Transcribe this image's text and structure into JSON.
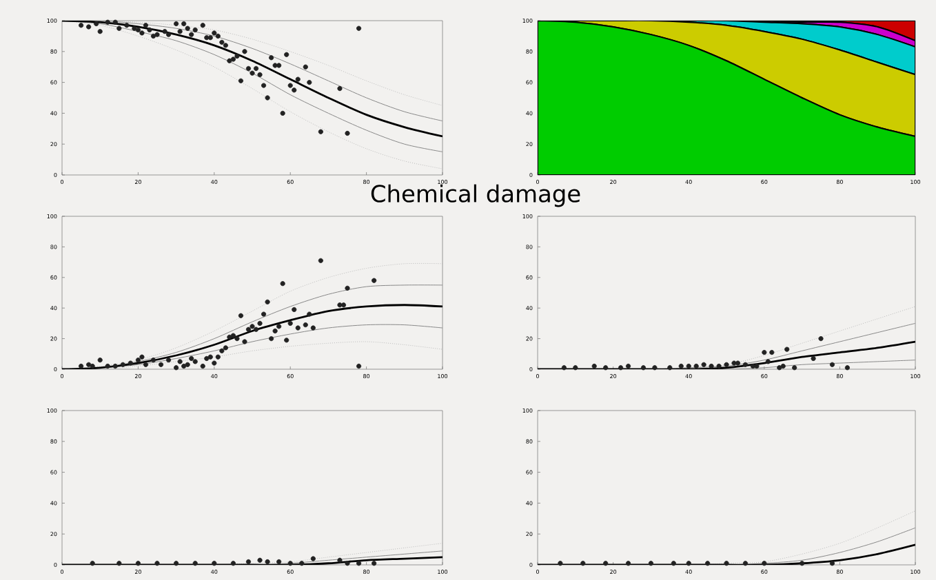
{
  "chart_data": [
    {
      "type": "scatter",
      "title": "Chemical damage",
      "xlim": [
        0,
        100
      ],
      "ylim": [
        0,
        100
      ],
      "xticks": [
        0,
        20,
        40,
        60,
        80,
        100
      ],
      "yticks": [
        0,
        20,
        40,
        60,
        80,
        100
      ],
      "grid": false,
      "series": [
        {
          "type": "scatter",
          "marker": "circle",
          "color": "#222222",
          "x": [
            5,
            7,
            9,
            10,
            12,
            14,
            15,
            17,
            19,
            20,
            21,
            22,
            23,
            24,
            25,
            27,
            28,
            30,
            31,
            32,
            33,
            34,
            35,
            37,
            38,
            39,
            40,
            41,
            42,
            43,
            44,
            45,
            46,
            47,
            48,
            49,
            50,
            51,
            52,
            53,
            54,
            55,
            56,
            57,
            58,
            59,
            60,
            61,
            62,
            64,
            65,
            68,
            73,
            75,
            78
          ],
          "values": [
            97,
            96,
            98,
            93,
            99,
            99,
            95,
            97,
            95,
            94,
            92,
            97,
            94,
            90,
            91,
            93,
            91,
            98,
            93,
            98,
            95,
            91,
            94,
            97,
            89,
            89,
            92,
            90,
            86,
            84,
            74,
            75,
            77,
            61,
            80,
            69,
            66,
            69,
            65,
            58,
            50,
            76,
            71,
            71,
            40,
            78,
            58,
            55,
            62,
            70,
            60,
            28,
            56,
            27,
            95
          ]
        },
        {
          "type": "line",
          "line_style": "dotted",
          "color": "#bbbbbb",
          "x": [
            0,
            10,
            20,
            30,
            40,
            50,
            60,
            70,
            80,
            90,
            100
          ],
          "values": [
            100,
            100,
            99,
            97,
            94,
            88,
            80,
            71,
            61,
            52,
            45
          ]
        },
        {
          "type": "line",
          "line_style": "dotted",
          "color": "#bbbbbb",
          "x": [
            0,
            10,
            20,
            30,
            40,
            50,
            60,
            70,
            80,
            90,
            100
          ],
          "values": [
            100,
            97,
            90,
            81,
            70,
            56,
            41,
            28,
            17,
            9,
            4
          ]
        },
        {
          "type": "line",
          "line_style": "solid",
          "color": "#888888",
          "x": [
            0,
            10,
            20,
            30,
            40,
            50,
            60,
            70,
            80,
            90,
            100
          ],
          "values": [
            100,
            100,
            98,
            95,
            90,
            82,
            72,
            61,
            50,
            41,
            35
          ]
        },
        {
          "type": "line",
          "line_style": "solid",
          "color": "#888888",
          "x": [
            0,
            10,
            20,
            30,
            40,
            50,
            60,
            70,
            80,
            90,
            100
          ],
          "values": [
            100,
            98,
            93,
            87,
            78,
            66,
            52,
            40,
            29,
            20,
            15
          ]
        },
        {
          "type": "line",
          "line_style": "solid",
          "color": "#000000",
          "x": [
            0,
            10,
            20,
            30,
            40,
            50,
            60,
            70,
            80,
            90,
            100
          ],
          "values": [
            100,
            99,
            96,
            91,
            84,
            74,
            62,
            50,
            39,
            31,
            25
          ]
        }
      ]
    },
    {
      "type": "area",
      "stacked": true,
      "xlim": [
        0,
        100
      ],
      "ylim": [
        0,
        100
      ],
      "xticks": [
        0,
        20,
        40,
        60,
        80,
        100
      ],
      "yticks": [
        0,
        20,
        40,
        60,
        80,
        100
      ],
      "grid": false,
      "x": [
        0,
        10,
        20,
        30,
        40,
        50,
        60,
        70,
        80,
        90,
        100
      ],
      "series": [
        {
          "color": "#00cc00",
          "values": [
            100,
            99,
            96,
            91,
            84,
            74,
            62,
            50,
            39,
            31,
            25
          ]
        },
        {
          "color": "#cccc00",
          "values": [
            0,
            1,
            4,
            9,
            15,
            23,
            31,
            38,
            42,
            42,
            40
          ]
        },
        {
          "color": "#00cccc",
          "values": [
            0,
            0,
            0,
            0,
            1,
            3,
            6,
            10,
            15,
            18,
            18
          ]
        },
        {
          "color": "#cc00cc",
          "values": [
            0,
            0,
            0,
            0,
            0,
            0,
            1,
            1,
            3,
            5,
            4
          ]
        },
        {
          "color": "#cc0000",
          "values": [
            0,
            0,
            0,
            0,
            0,
            0,
            0,
            1,
            1,
            4,
            13
          ]
        }
      ]
    },
    {
      "type": "scatter",
      "xlim": [
        0,
        100
      ],
      "ylim": [
        0,
        100
      ],
      "xticks": [
        0,
        20,
        40,
        60,
        80,
        100
      ],
      "yticks": [
        0,
        20,
        40,
        60,
        80,
        100
      ],
      "grid": false,
      "series": [
        {
          "type": "scatter",
          "marker": "circle",
          "color": "#222222",
          "x": [
            5,
            7,
            8,
            10,
            12,
            14,
            16,
            18,
            20,
            21,
            22,
            24,
            26,
            28,
            30,
            31,
            32,
            33,
            34,
            35,
            37,
            38,
            39,
            40,
            41,
            42,
            43,
            44,
            45,
            46,
            47,
            48,
            49,
            50,
            51,
            52,
            53,
            54,
            55,
            56,
            57,
            58,
            59,
            60,
            61,
            62,
            64,
            65,
            66,
            68,
            73,
            74,
            75,
            78,
            82
          ],
          "values": [
            2,
            3,
            2,
            6,
            2,
            2,
            3,
            4,
            6,
            8,
            3,
            6,
            3,
            6,
            1,
            5,
            2,
            3,
            7,
            5,
            2,
            7,
            8,
            4,
            8,
            12,
            14,
            21,
            22,
            20,
            35,
            18,
            26,
            28,
            26,
            30,
            36,
            44,
            20,
            25,
            28,
            56,
            19,
            30,
            39,
            27,
            29,
            36,
            27,
            71,
            42,
            42,
            53,
            2,
            58
          ]
        },
        {
          "type": "line",
          "line_style": "dotted",
          "color": "#bbbbbb",
          "x": [
            0,
            10,
            20,
            30,
            40,
            50,
            60,
            70,
            80,
            90,
            100
          ],
          "values": [
            0,
            2,
            6,
            14,
            25,
            38,
            51,
            60,
            66,
            69,
            69
          ]
        },
        {
          "type": "line",
          "line_style": "dotted",
          "color": "#bbbbbb",
          "x": [
            0,
            10,
            20,
            30,
            40,
            50,
            60,
            70,
            80,
            90,
            100
          ],
          "values": [
            0,
            0,
            2,
            5,
            8,
            12,
            15,
            17,
            18,
            16,
            13
          ]
        },
        {
          "type": "line",
          "line_style": "solid",
          "color": "#888888",
          "x": [
            0,
            10,
            20,
            30,
            40,
            50,
            60,
            70,
            80,
            90,
            100
          ],
          "values": [
            0,
            1,
            5,
            11,
            20,
            31,
            41,
            49,
            54,
            55,
            55
          ]
        },
        {
          "type": "line",
          "line_style": "solid",
          "color": "#888888",
          "x": [
            0,
            10,
            20,
            30,
            40,
            50,
            60,
            70,
            80,
            90,
            100
          ],
          "values": [
            0,
            1,
            3,
            7,
            12,
            18,
            23,
            27,
            29,
            29,
            27
          ]
        },
        {
          "type": "line",
          "line_style": "solid",
          "color": "#000000",
          "x": [
            0,
            10,
            20,
            30,
            40,
            50,
            60,
            70,
            80,
            90,
            100
          ],
          "values": [
            0,
            1,
            4,
            9,
            16,
            25,
            32,
            38,
            41,
            42,
            41
          ]
        }
      ]
    },
    {
      "type": "scatter",
      "xlim": [
        0,
        100
      ],
      "ylim": [
        0,
        100
      ],
      "xticks": [
        0,
        20,
        40,
        60,
        80,
        100
      ],
      "yticks": [
        0,
        20,
        40,
        60,
        80,
        100
      ],
      "grid": false,
      "series": [
        {
          "type": "scatter",
          "marker": "circle",
          "color": "#222222",
          "x": [
            7,
            10,
            15,
            18,
            22,
            24,
            28,
            31,
            35,
            38,
            40,
            42,
            44,
            46,
            48,
            50,
            52,
            53,
            55,
            57,
            58,
            60,
            61,
            62,
            64,
            65,
            66,
            68,
            73,
            75,
            78,
            82
          ],
          "values": [
            1,
            1,
            2,
            1,
            1,
            2,
            1,
            1,
            1,
            2,
            2,
            2,
            3,
            2,
            2,
            3,
            4,
            4,
            3,
            2,
            2,
            11,
            5,
            11,
            1,
            2,
            13,
            1,
            7,
            20,
            3,
            1
          ]
        },
        {
          "type": "line",
          "line_style": "dotted",
          "color": "#bbbbbb",
          "x": [
            0,
            10,
            20,
            30,
            40,
            50,
            60,
            70,
            80,
            90,
            100
          ],
          "values": [
            0,
            0,
            0,
            0,
            1,
            3,
            9,
            17,
            25,
            33,
            41
          ]
        },
        {
          "type": "line",
          "line_style": "solid",
          "color": "#888888",
          "x": [
            0,
            10,
            20,
            30,
            40,
            50,
            60,
            70,
            80,
            90,
            100
          ],
          "values": [
            0,
            0,
            0,
            0,
            1,
            2,
            6,
            12,
            18,
            24,
            30
          ]
        },
        {
          "type": "line",
          "line_style": "solid",
          "color": "#888888",
          "x": [
            0,
            10,
            20,
            30,
            40,
            50,
            60,
            70,
            80,
            90,
            100
          ],
          "values": [
            0,
            0,
            0,
            0,
            0,
            0,
            1,
            3,
            4,
            5,
            6
          ]
        },
        {
          "type": "line",
          "line_style": "solid",
          "color": "#000000",
          "x": [
            0,
            10,
            20,
            30,
            40,
            50,
            60,
            70,
            80,
            90,
            100
          ],
          "values": [
            0,
            0,
            0,
            0,
            0,
            1,
            4,
            8,
            11,
            14,
            18
          ]
        }
      ]
    },
    {
      "type": "scatter",
      "xlim": [
        0,
        100
      ],
      "ylim": [
        0,
        100
      ],
      "xticks": [
        0,
        20,
        40,
        60,
        80,
        100
      ],
      "yticks": [
        0,
        20,
        40,
        60,
        80,
        100
      ],
      "grid": false,
      "series": [
        {
          "type": "scatter",
          "marker": "circle",
          "color": "#222222",
          "x": [
            8,
            15,
            20,
            25,
            30,
            35,
            40,
            45,
            49,
            52,
            54,
            57,
            60,
            63,
            66,
            73,
            75,
            78,
            82
          ],
          "values": [
            1,
            1,
            1,
            1,
            1,
            1,
            1,
            1,
            2,
            3,
            2,
            2,
            1,
            1,
            4,
            3,
            1,
            1,
            1
          ]
        },
        {
          "type": "line",
          "line_style": "dotted",
          "color": "#bbbbbb",
          "x": [
            0,
            10,
            20,
            30,
            40,
            50,
            60,
            70,
            80,
            90,
            100
          ],
          "values": [
            0,
            0,
            0,
            0,
            0,
            1,
            2,
            5,
            8,
            11,
            14
          ]
        },
        {
          "type": "line",
          "line_style": "solid",
          "color": "#888888",
          "x": [
            0,
            10,
            20,
            30,
            40,
            50,
            60,
            70,
            80,
            90,
            100
          ],
          "values": [
            0,
            0,
            0,
            0,
            0,
            0,
            1,
            3,
            5,
            7,
            9
          ]
        },
        {
          "type": "line",
          "line_style": "solid",
          "color": "#000000",
          "x": [
            0,
            10,
            20,
            30,
            40,
            50,
            60,
            70,
            80,
            90,
            100
          ],
          "values": [
            0,
            0,
            0,
            0,
            0,
            0,
            0,
            1,
            3,
            4,
            5
          ]
        }
      ]
    },
    {
      "type": "scatter",
      "xlim": [
        0,
        100
      ],
      "ylim": [
        0,
        100
      ],
      "xticks": [
        0,
        20,
        40,
        60,
        80,
        100
      ],
      "yticks": [
        0,
        20,
        40,
        60,
        80,
        100
      ],
      "grid": false,
      "series": [
        {
          "type": "scatter",
          "marker": "circle",
          "color": "#222222",
          "x": [
            6,
            12,
            18,
            24,
            30,
            36,
            40,
            45,
            50,
            55,
            60,
            70,
            78
          ],
          "values": [
            1,
            1,
            1,
            1,
            1,
            1,
            1,
            1,
            1,
            1,
            1,
            1,
            1
          ]
        },
        {
          "type": "line",
          "line_style": "dotted",
          "color": "#bbbbbb",
          "x": [
            0,
            10,
            20,
            30,
            40,
            50,
            60,
            70,
            80,
            90,
            100
          ],
          "values": [
            0,
            0,
            0,
            0,
            0,
            1,
            2,
            7,
            14,
            24,
            35
          ]
        },
        {
          "type": "line",
          "line_style": "solid",
          "color": "#888888",
          "x": [
            0,
            10,
            20,
            30,
            40,
            50,
            60,
            70,
            80,
            90,
            100
          ],
          "values": [
            0,
            0,
            0,
            0,
            0,
            0,
            1,
            3,
            8,
            15,
            24
          ]
        },
        {
          "type": "line",
          "line_style": "solid",
          "color": "#000000",
          "x": [
            0,
            10,
            20,
            30,
            40,
            50,
            60,
            70,
            80,
            90,
            100
          ],
          "values": [
            0,
            0,
            0,
            0,
            0,
            0,
            0,
            1,
            3,
            7,
            13
          ]
        }
      ]
    }
  ]
}
